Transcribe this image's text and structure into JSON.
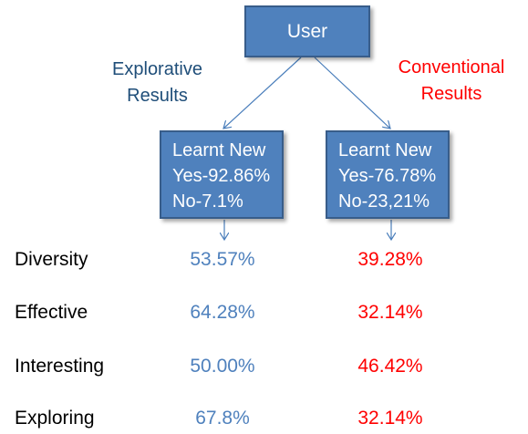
{
  "root": {
    "label": "User"
  },
  "branches": {
    "explorative": {
      "title_line1": "Explorative",
      "title_line2": "Results",
      "box_line1": "Learnt New",
      "box_line2": "Yes-92.86%",
      "box_line3": "No-7.1%"
    },
    "conventional": {
      "title_line1": "Conventional",
      "title_line2": "Results",
      "box_line1": "Learnt New",
      "box_line2": "Yes-76.78%",
      "box_line3": "No-23,21%"
    }
  },
  "metrics": [
    {
      "label": "Diversity",
      "explorative": "53.57%",
      "conventional": "39.28%"
    },
    {
      "label": "Effective",
      "explorative": "64.28%",
      "conventional": "32.14%"
    },
    {
      "label": "Interesting",
      "explorative": "50.00%",
      "conventional": "46.42%"
    },
    {
      "label": "Exploring",
      "explorative": "67.8%",
      "conventional": "32.14%"
    }
  ],
  "colors": {
    "box_fill": "#4f81bd",
    "box_border": "#385d8a",
    "explorative": "#4f81bd",
    "conventional": "#ff0000",
    "explorative_title": "#1f4e79"
  }
}
